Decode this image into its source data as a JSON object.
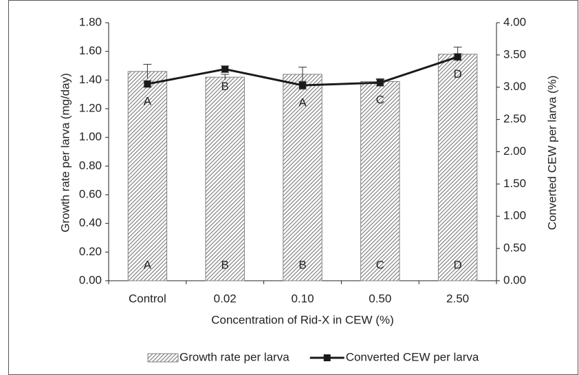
{
  "chart_data": {
    "type": "bar-line",
    "categories": [
      "Control",
      "0.02",
      "0.10",
      "0.50",
      "2.50"
    ],
    "x_label": "Concentration of Rid-X in CEW (%)",
    "y_label": "Growth rate per larva (mg/day)",
    "y2_label": "Converted CEW per larva (%)",
    "ylim": [
      0,
      1.8
    ],
    "yticks": [
      {
        "value": 0,
        "label": "0.00"
      },
      {
        "value": 0.2,
        "label": "0.20"
      },
      {
        "value": 0.4,
        "label": "0.40"
      },
      {
        "value": 0.6,
        "label": "0.60"
      },
      {
        "value": 0.8,
        "label": "0.80"
      },
      {
        "value": 1.0,
        "label": "1.00"
      },
      {
        "value": 1.2,
        "label": "1.20"
      },
      {
        "value": 1.4,
        "label": "1.40"
      },
      {
        "value": 1.6,
        "label": "1.60"
      },
      {
        "value": 1.8,
        "label": "1.80"
      }
    ],
    "y2lim": [
      0,
      4
    ],
    "y2ticks": [
      {
        "value": 0,
        "label": "0.00"
      },
      {
        "value": 0.5,
        "label": "0.50"
      },
      {
        "value": 1.0,
        "label": "1.00"
      },
      {
        "value": 1.5,
        "label": "1.50"
      },
      {
        "value": 2.0,
        "label": "2.00"
      },
      {
        "value": 2.5,
        "label": "2.50"
      },
      {
        "value": 3.0,
        "label": "3.00"
      },
      {
        "value": 3.5,
        "label": "3.50"
      },
      {
        "value": 4.0,
        "label": "4.00"
      }
    ],
    "legend": "bottom",
    "series": [
      {
        "name": "Growth rate per larva",
        "type": "bar",
        "color": "#808080",
        "values": [
          1.46,
          1.42,
          1.44,
          1.39,
          1.58
        ],
        "errors": [
          0.05,
          0.02,
          0.05,
          0.02,
          0.05
        ],
        "letters": [
          "A",
          "B",
          "B",
          "C",
          "D"
        ]
      },
      {
        "name": "Converted CEW per larva",
        "type": "line",
        "axis": "y2",
        "color": "#1a1a1a",
        "values": [
          3.05,
          3.28,
          3.03,
          3.07,
          3.47
        ],
        "errors": [
          0.05,
          0.05,
          0.06,
          0.05,
          0.05
        ],
        "letters": [
          "A",
          "B",
          "A",
          "C",
          "D"
        ]
      }
    ]
  }
}
